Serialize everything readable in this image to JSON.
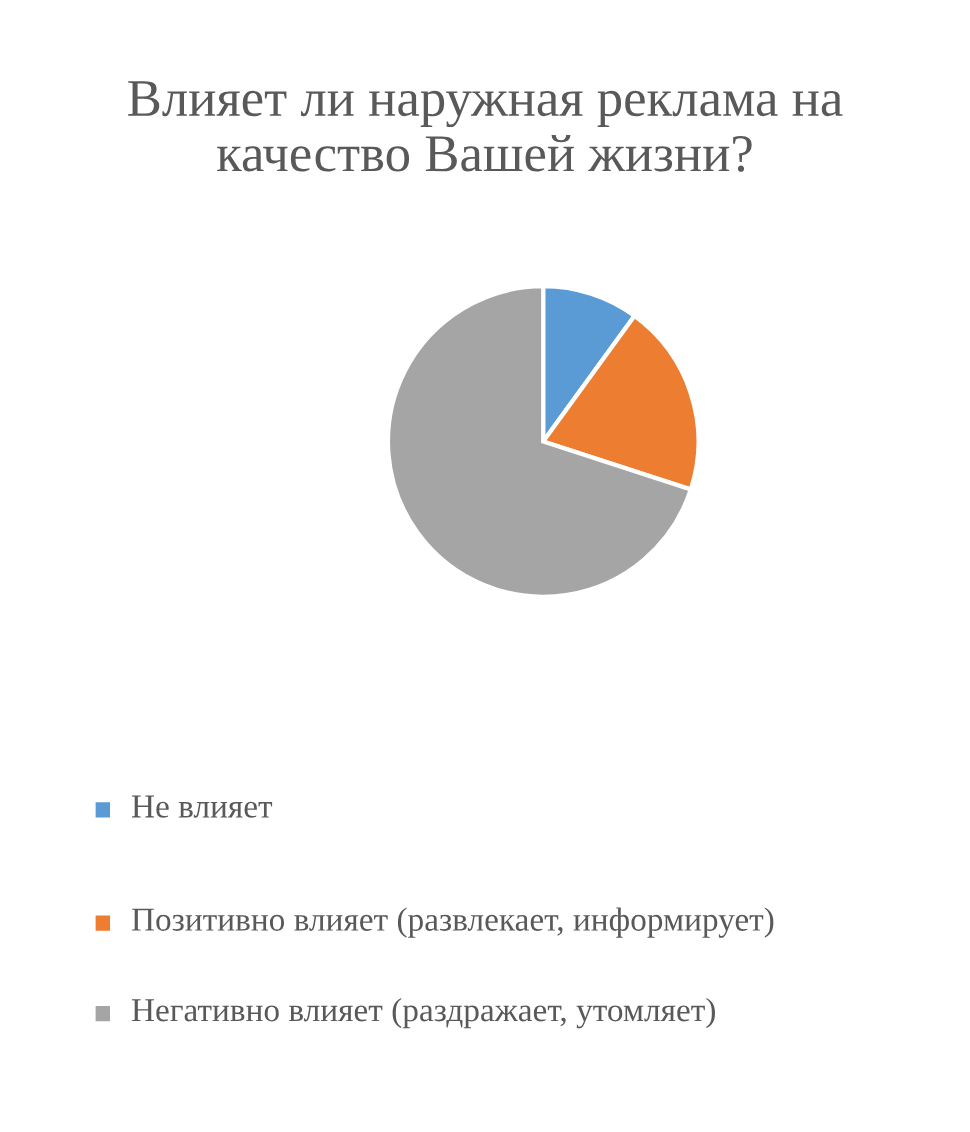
{
  "chart_data": {
    "type": "pie",
    "title": "Влияет ли наружная реклама на качество Вашей жизни?",
    "categories": [
      "Не влияет",
      "Позитивно влияет (развлекает, информирует)",
      "Негативно влияет (раздражает, утомляет)"
    ],
    "values": [
      10,
      20,
      70
    ],
    "colors": [
      "#5b9bd5",
      "#ed7d31",
      "#a5a5a5"
    ],
    "legend": "bottom"
  }
}
